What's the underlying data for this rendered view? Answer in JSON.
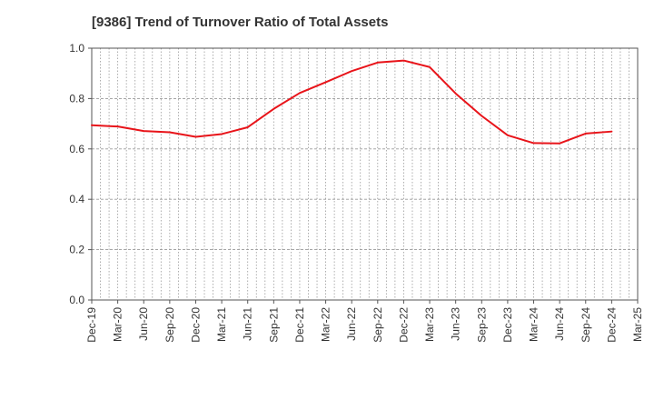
{
  "chart_data": {
    "type": "line",
    "title": "[9386]  Trend of Turnover Ratio of Total Assets",
    "xlabel": "",
    "ylabel": "",
    "categories": [
      "Dec-19",
      "Mar-20",
      "Jun-20",
      "Sep-20",
      "Dec-20",
      "Mar-21",
      "Jun-21",
      "Sep-21",
      "Dec-21",
      "Mar-22",
      "Jun-22",
      "Sep-22",
      "Dec-22",
      "Mar-23",
      "Jun-23",
      "Sep-23",
      "Dec-23",
      "Mar-24",
      "Jun-24",
      "Sep-24",
      "Dec-24",
      "Mar-25"
    ],
    "series": [
      {
        "values": [
          0.694,
          0.689,
          0.671,
          0.666,
          0.648,
          0.659,
          0.686,
          0.759,
          0.822,
          0.865,
          0.909,
          0.943,
          0.951,
          0.925,
          0.82,
          0.731,
          0.654,
          0.623,
          0.622,
          0.661,
          0.669,
          null
        ]
      }
    ],
    "ylim": [
      0.0,
      1.0
    ],
    "yticks": [
      "0.0",
      "0.2",
      "0.4",
      "0.6",
      "0.8",
      "1.0"
    ],
    "grid": true,
    "colors": {
      "line": "#e8141a",
      "grid": "#999999",
      "axis": "#555555"
    }
  }
}
